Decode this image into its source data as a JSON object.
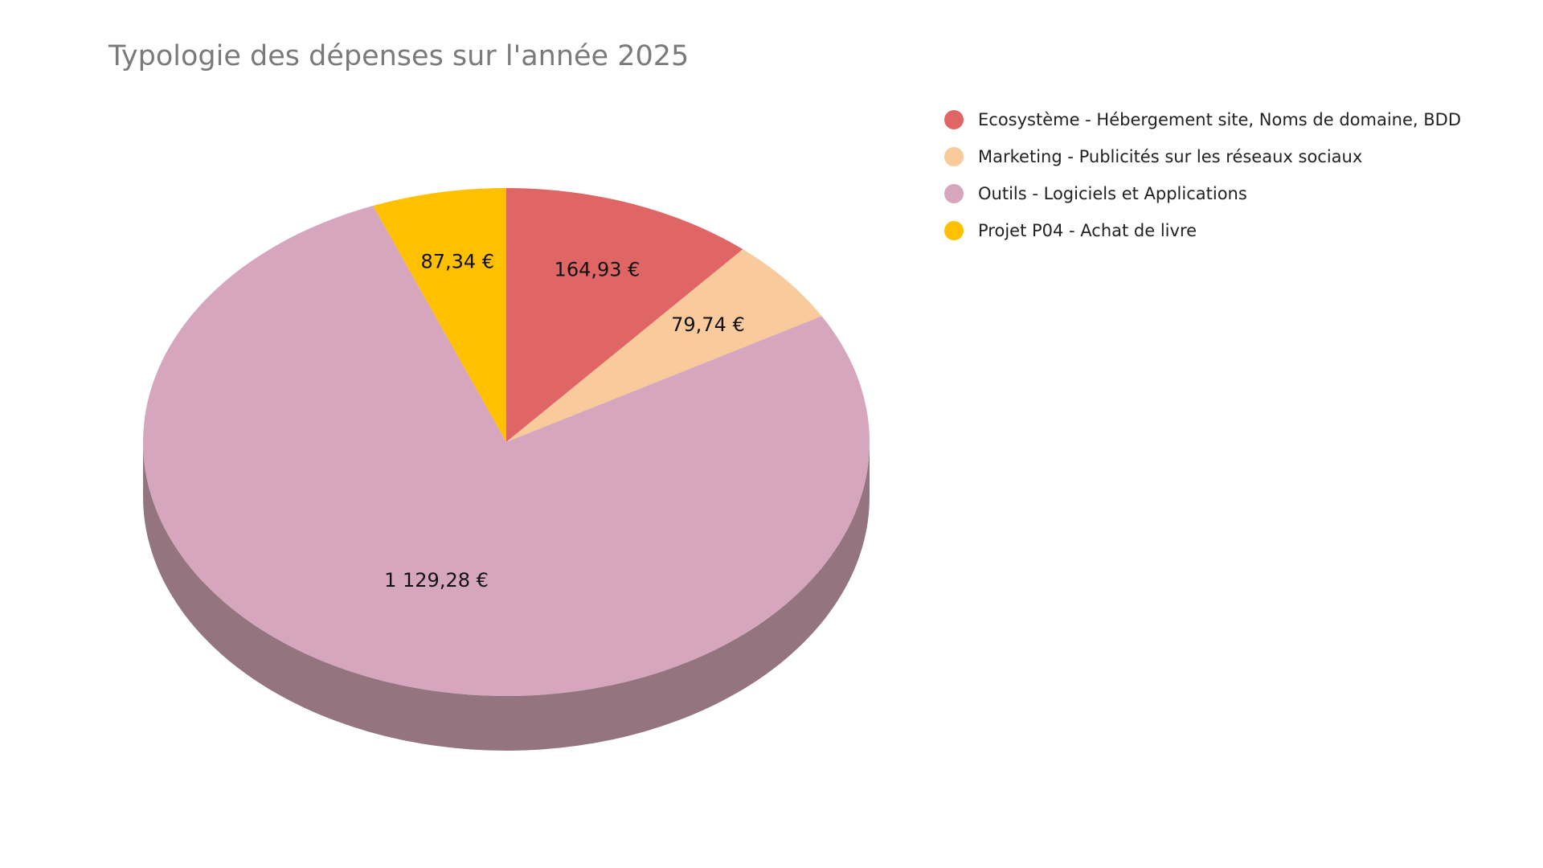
{
  "chart_data": {
    "type": "pie",
    "title": "Typologie des dépenses sur l'année 2025",
    "style": "3d",
    "legend_position": "right",
    "start_angle_deg": 0,
    "direction": "clockwise",
    "slices": [
      {
        "name": "Ecosystème - Hébergement site, Noms de domaine, BDD",
        "value": 164.93,
        "label": "164,93 €",
        "color": "#E06666",
        "side_color": "#A44A4A"
      },
      {
        "name": "Marketing - Publicités sur les réseaux sociaux",
        "value": 79.74,
        "label": "79,74 €",
        "color": "#F9CB9C",
        "side_color": "#B8946F"
      },
      {
        "name": "Outils - Logiciels et Applications",
        "value": 1129.28,
        "label": "1 129,28 €",
        "color": "#D5A6BD",
        "side_color": "#94747F"
      },
      {
        "name": "Projet P04 - Achat de livre",
        "value": 87.34,
        "label": "87,34 €",
        "color": "#FFC000",
        "side_color": "#B38600"
      }
    ]
  }
}
